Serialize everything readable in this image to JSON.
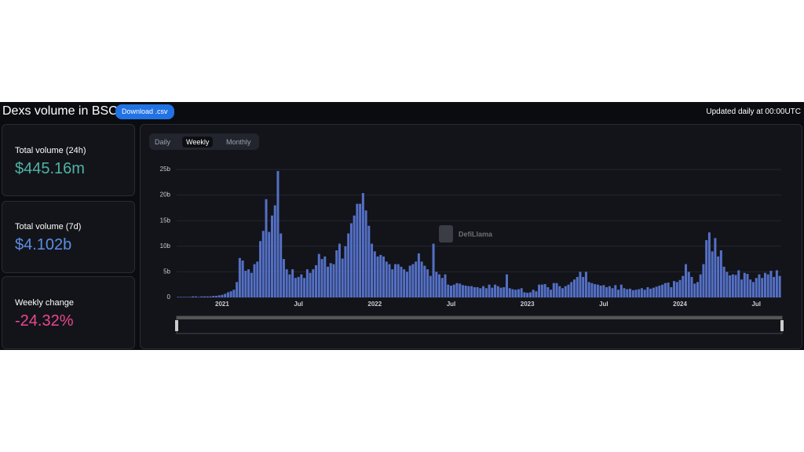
{
  "header": {
    "title": "Dexs volume in BSC",
    "button": "Download .csv",
    "updated": "Updated daily at 00:00UTC"
  },
  "stats": [
    {
      "label": "Total volume (24h)",
      "value": "$445.16m"
    },
    {
      "label": "Total volume (7d)",
      "value": "$4.102b"
    },
    {
      "label": "Weekly change",
      "value": "-24.32%"
    }
  ],
  "tabs": [
    "Daily",
    "Weekly",
    "Monthly"
  ],
  "watermark": "DefiLlama",
  "chart_data": {
    "type": "bar",
    "color": "#5470c6",
    "grid": true,
    "ylim": [
      0,
      25
    ],
    "yticks": [
      {
        "value": 0,
        "label": "0"
      },
      {
        "value": 5,
        "label": "5b"
      },
      {
        "value": 10,
        "label": "10b"
      },
      {
        "value": 15,
        "label": "15b"
      },
      {
        "value": 20,
        "label": "20b"
      },
      {
        "value": 25,
        "label": "25b"
      }
    ],
    "categories": [
      null,
      null,
      null,
      null,
      null,
      null,
      null,
      null,
      null,
      null,
      null,
      null,
      null,
      null,
      null,
      "2021",
      null,
      null,
      null,
      null,
      null,
      null,
      null,
      null,
      null,
      null,
      null,
      null,
      null,
      null,
      null,
      null,
      null,
      null,
      null,
      null,
      null,
      null,
      null,
      null,
      null,
      "Jul",
      null,
      null,
      null,
      null,
      null,
      null,
      null,
      null,
      null,
      null,
      null,
      null,
      null,
      null,
      null,
      null,
      null,
      null,
      null,
      null,
      null,
      null,
      null,
      null,
      null,
      "2022",
      null,
      null,
      null,
      null,
      null,
      null,
      null,
      null,
      null,
      null,
      null,
      null,
      null,
      null,
      null,
      null,
      null,
      null,
      null,
      null,
      null,
      null,
      null,
      null,
      null,
      "Jul",
      null,
      null,
      null,
      null,
      null,
      null,
      null,
      null,
      null,
      null,
      null,
      null,
      null,
      null,
      null,
      null,
      null,
      null,
      null,
      null,
      null,
      null,
      null,
      null,
      null,
      "2023",
      null,
      null,
      null,
      null,
      null,
      null,
      null,
      null,
      null,
      null,
      null,
      null,
      null,
      null,
      null,
      null,
      null,
      null,
      null,
      null,
      null,
      null,
      null,
      null,
      null,
      "Jul",
      null,
      null,
      null,
      null,
      null,
      null,
      null,
      null,
      null,
      null,
      null,
      null,
      null,
      null,
      null,
      null,
      null,
      null,
      null,
      null,
      null,
      null,
      null,
      null,
      null,
      "2024",
      null,
      null,
      null,
      null,
      null,
      null,
      null,
      null,
      null,
      null,
      null,
      null,
      null,
      null,
      null,
      null,
      null,
      null,
      null,
      null,
      null,
      null,
      null,
      null,
      null,
      "Jul",
      null,
      null,
      null,
      null,
      null,
      null,
      null,
      null
    ],
    "values": [
      0.1,
      0.1,
      0.1,
      0.1,
      0.1,
      0.2,
      0.2,
      0.1,
      0.2,
      0.2,
      0.2,
      0.2,
      0.3,
      0.3,
      0.4,
      0.5,
      0.7,
      1.0,
      1.2,
      1.5,
      3.0,
      7.7,
      7.2,
      5.2,
      5.5,
      4.8,
      6.5,
      7.0,
      11,
      13,
      19.2,
      12.8,
      16,
      18,
      24.7,
      12.5,
      7.5,
      5.5,
      4.5,
      5.5,
      3.8,
      4.0,
      4.5,
      3.8,
      5.5,
      4.8,
      5.5,
      6.3,
      8.5,
      7.5,
      8.0,
      6.0,
      6.7,
      6.5,
      9.2,
      10.5,
      7.6,
      10,
      12.5,
      14.5,
      16,
      18.3,
      18.3,
      20.4,
      17,
      14,
      10.5,
      9,
      8,
      8.3,
      8,
      7,
      6.5,
      5.5,
      6.5,
      6.5,
      6,
      5.5,
      5,
      6.2,
      6.5,
      7,
      8.6,
      7,
      6.2,
      5.5,
      4.2,
      10.5,
      5,
      4.5,
      3.8,
      4.5,
      2.5,
      2.3,
      2.5,
      2.8,
      2.7,
      2.4,
      2.3,
      2.2,
      2.2,
      2.0,
      2.0,
      1.8,
      2.2,
      1.8,
      2.5,
      1.9,
      2.5,
      2.2,
      1.9,
      2.0,
      4.5,
      1.8,
      1.6,
      1.5,
      1.6,
      1.8,
      1.0,
      0.9,
      1.0,
      1.5,
      1.2,
      2.5,
      2.5,
      2.6,
      2.0,
      1.5,
      2.8,
      2.8,
      2.2,
      1.8,
      2.2,
      2.5,
      3.0,
      3.5,
      4.0,
      5.0,
      4.0,
      5.0,
      3.0,
      2.8,
      2.6,
      2.5,
      2.3,
      2.4,
      2.0,
      2.2,
      1.8,
      2.4,
      1.5,
      2.5,
      1.8,
      1.6,
      1.7,
      1.4,
      1.5,
      1.6,
      1.8,
      1.5,
      2.0,
      1.7,
      1.9,
      2.1,
      2.3,
      2.5,
      2.8,
      2.9,
      2.0,
      3.2,
      3.0,
      3.4,
      4.2,
      6.5,
      5,
      4,
      2.7,
      3,
      4.5,
      6.5,
      11.2,
      12.7,
      9,
      11.6,
      8,
      9.2,
      6,
      5,
      4.3,
      4.5,
      4.4,
      5.3,
      3.5,
      4.8,
      4.6,
      3.5,
      3.0,
      3.8,
      4.5,
      3.8,
      4.8,
      4.5,
      5.2,
      4.0,
      5.3,
      4.2
    ]
  }
}
